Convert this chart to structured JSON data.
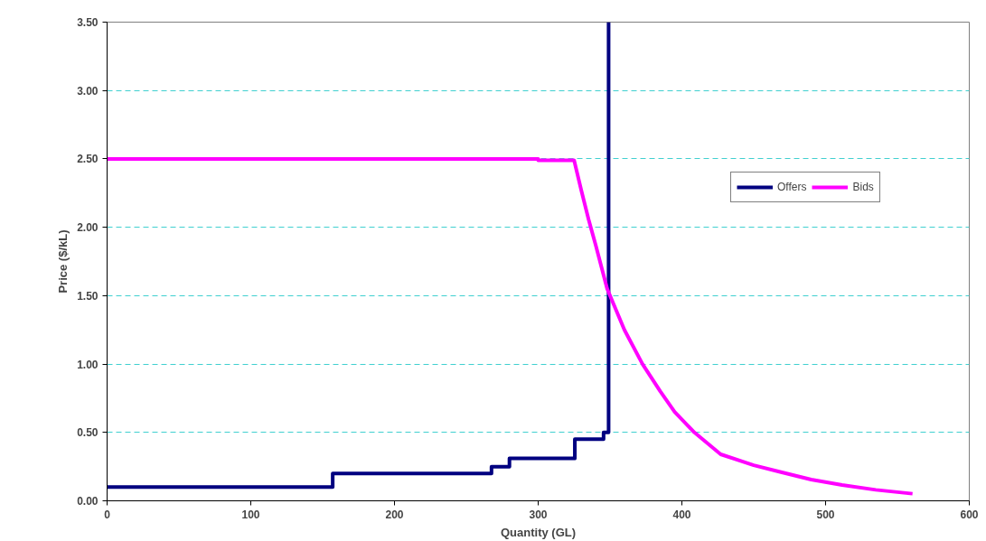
{
  "chart_data": {
    "type": "line",
    "xlabel": "Quantity (GL)",
    "ylabel": "Price ($/kL)",
    "series": [
      {
        "name": "Offers",
        "color": "#000080",
        "x": [
          0,
          157,
          157,
          267.5,
          267.5,
          280,
          280,
          325.5,
          325.5,
          345.5,
          345.5,
          349,
          349
        ],
        "values": [
          0.1,
          0.1,
          0.2,
          0.2,
          0.25,
          0.25,
          0.31,
          0.31,
          0.45,
          0.45,
          0.5,
          0.5,
          3.5
        ]
      },
      {
        "name": "Bids",
        "color": "#ff00ff",
        "x": [
          0,
          300,
          300,
          325,
          330,
          335,
          340,
          348,
          360,
          372.6,
          385,
          395,
          408.7,
          427,
          450,
          469,
          490,
          511.5,
          535,
          560.5
        ],
        "values": [
          2.5,
          2.5,
          2.49,
          2.49,
          2.27,
          2.06,
          1.87,
          1.55,
          1.25,
          1.0,
          0.8,
          0.65,
          0.5,
          0.34,
          0.26,
          0.21,
          0.155,
          0.115,
          0.08,
          0.052
        ]
      }
    ],
    "xlim": [
      0,
      600
    ],
    "xticks": [
      0,
      100,
      200,
      300,
      400,
      500,
      600
    ],
    "ylim": [
      0,
      3.5
    ],
    "yticks": [
      {
        "value": 0,
        "label": "0.00"
      },
      {
        "value": 0.5,
        "label": "0.50"
      },
      {
        "value": 1,
        "label": "1.00"
      },
      {
        "value": 1.5,
        "label": "1.50"
      },
      {
        "value": 2,
        "label": "2.00"
      },
      {
        "value": 2.5,
        "label": "2.50"
      },
      {
        "value": 3,
        "label": "3.00"
      },
      {
        "value": 3.5,
        "label": "3.50"
      }
    ],
    "grid": "y",
    "legend": "right",
    "marker": "none",
    "line_style": "solid"
  }
}
